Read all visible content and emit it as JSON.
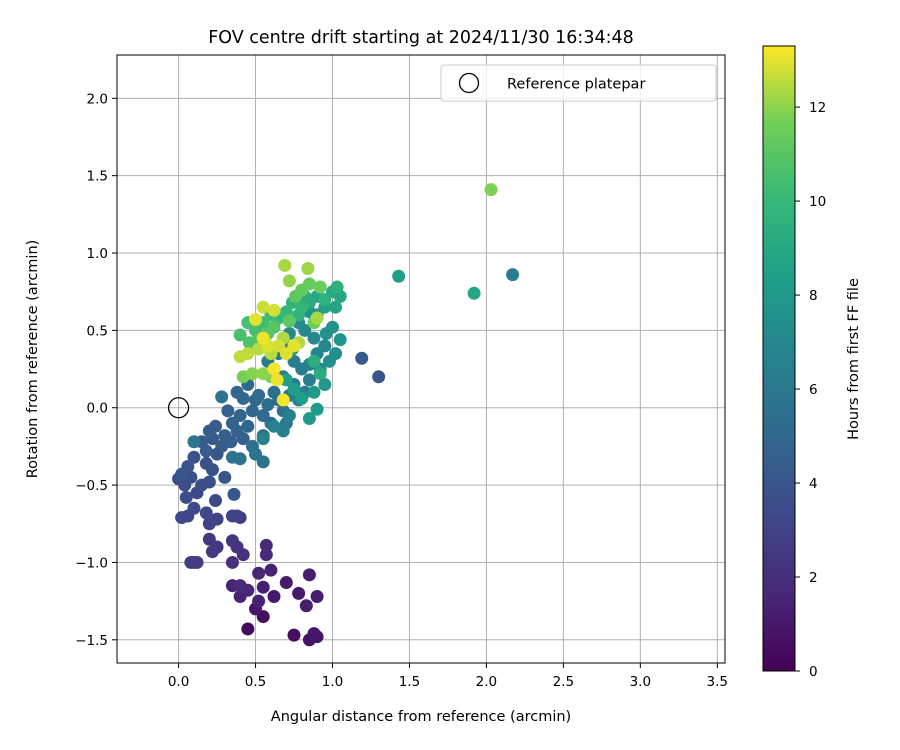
{
  "chart_data": {
    "type": "scatter",
    "title": "FOV centre drift starting at 2024/11/30 16:34:48",
    "xlabel": "Angular distance from reference (arcmin)",
    "ylabel": "Rotation from reference (arcmin)",
    "xlim": [
      -0.4,
      3.55
    ],
    "ylim": [
      -1.65,
      2.28
    ],
    "xticks": [
      0.0,
      0.5,
      1.0,
      1.5,
      2.0,
      2.5,
      3.0,
      3.5
    ],
    "xtick_labels": [
      "0.0",
      "0.5",
      "1.0",
      "1.5",
      "2.0",
      "2.5",
      "3.0",
      "3.5"
    ],
    "yticks": [
      -1.5,
      -1.0,
      -0.5,
      0.0,
      0.5,
      1.0,
      1.5,
      2.0
    ],
    "ytick_labels": [
      "−1.5",
      "−1.0",
      "−0.5",
      "0.0",
      "0.5",
      "1.0",
      "1.5",
      "2.0"
    ],
    "grid": true,
    "legend": {
      "position": "top-right",
      "entries": [
        {
          "label": "Reference platepar",
          "marker": "open-circle"
        }
      ]
    },
    "reference_point": {
      "x": 0.0,
      "y": 0.0
    },
    "colorbar": {
      "label": "Hours from first FF file",
      "colormap": "viridis",
      "range": [
        0,
        13.3
      ],
      "ticks": [
        0,
        2,
        4,
        6,
        8,
        10,
        12
      ],
      "tick_labels": [
        "0",
        "2",
        "4",
        "6",
        "8",
        "10",
        "12"
      ]
    },
    "points": [
      [
        0.45,
        -1.43,
        0.4
      ],
      [
        0.55,
        -1.35,
        0.5
      ],
      [
        0.75,
        -1.47,
        0.6
      ],
      [
        0.85,
        -1.5,
        0.7
      ],
      [
        0.9,
        -1.48,
        0.8
      ],
      [
        0.88,
        -1.46,
        0.9
      ],
      [
        0.5,
        -1.3,
        1.0
      ],
      [
        0.62,
        -1.22,
        1.0
      ],
      [
        0.7,
        -1.13,
        1.1
      ],
      [
        0.78,
        -1.2,
        1.1
      ],
      [
        0.83,
        -1.28,
        1.2
      ],
      [
        0.9,
        -1.22,
        1.2
      ],
      [
        0.85,
        -1.08,
        1.3
      ],
      [
        0.55,
        -1.16,
        1.3
      ],
      [
        0.6,
        -1.05,
        1.4
      ],
      [
        0.52,
        -1.25,
        1.4
      ],
      [
        0.4,
        -1.22,
        1.5
      ],
      [
        0.35,
        -1.15,
        1.5
      ],
      [
        0.45,
        -1.18,
        1.6
      ],
      [
        0.52,
        -1.07,
        1.6
      ],
      [
        0.57,
        -0.95,
        1.7
      ],
      [
        0.57,
        -0.89,
        1.8
      ],
      [
        0.4,
        -1.15,
        1.9
      ],
      [
        0.35,
        -1.0,
        2.0
      ],
      [
        0.42,
        -0.95,
        2.1
      ],
      [
        0.38,
        -0.9,
        2.2
      ],
      [
        0.35,
        -0.86,
        2.3
      ],
      [
        0.25,
        -0.9,
        2.4
      ],
      [
        0.2,
        -0.85,
        2.5
      ],
      [
        0.22,
        -0.93,
        2.6
      ],
      [
        0.1,
        -1.0,
        2.6
      ],
      [
        0.08,
        -1.0,
        2.7
      ],
      [
        0.12,
        -1.0,
        2.7
      ],
      [
        0.4,
        -0.71,
        2.8
      ],
      [
        0.38,
        -0.7,
        2.9
      ],
      [
        0.25,
        -0.72,
        3.0
      ],
      [
        0.2,
        -0.75,
        3.0
      ],
      [
        0.35,
        -0.7,
        3.1
      ],
      [
        0.02,
        -0.71,
        3.2
      ],
      [
        0.06,
        -0.7,
        3.2
      ],
      [
        0.1,
        -0.65,
        3.3
      ],
      [
        0.18,
        -0.68,
        3.3
      ],
      [
        0.24,
        -0.6,
        3.4
      ],
      [
        0.12,
        -0.55,
        3.4
      ],
      [
        0.05,
        -0.58,
        3.5
      ],
      [
        0.0,
        -0.46,
        3.5
      ],
      [
        0.04,
        -0.5,
        3.6
      ],
      [
        0.08,
        -0.45,
        3.6
      ],
      [
        0.15,
        -0.5,
        3.7
      ],
      [
        0.2,
        -0.48,
        3.7
      ],
      [
        0.22,
        -0.4,
        3.8
      ],
      [
        0.18,
        -0.36,
        3.8
      ],
      [
        0.1,
        -0.32,
        3.9
      ],
      [
        0.06,
        -0.38,
        3.9
      ],
      [
        0.02,
        -0.43,
        4.0
      ],
      [
        0.3,
        -0.45,
        4.0
      ],
      [
        0.36,
        -0.56,
        4.1
      ],
      [
        0.25,
        -0.3,
        4.1
      ],
      [
        0.28,
        -0.25,
        4.2
      ],
      [
        0.22,
        -0.2,
        4.2
      ],
      [
        0.18,
        -0.28,
        4.3
      ],
      [
        0.15,
        -0.22,
        4.3
      ],
      [
        0.2,
        -0.15,
        4.4
      ],
      [
        0.24,
        -0.12,
        4.4
      ],
      [
        0.3,
        -0.18,
        4.5
      ],
      [
        0.34,
        -0.22,
        4.5
      ],
      [
        0.38,
        -0.15,
        4.6
      ],
      [
        0.42,
        -0.2,
        4.6
      ],
      [
        0.35,
        -0.1,
        4.7
      ],
      [
        0.32,
        -0.02,
        4.7
      ],
      [
        0.4,
        -0.05,
        4.8
      ],
      [
        0.45,
        -0.12,
        4.8
      ],
      [
        0.48,
        -0.02,
        4.9
      ],
      [
        0.5,
        0.05,
        4.9
      ],
      [
        0.42,
        0.06,
        5.0
      ],
      [
        0.38,
        0.1,
        5.0
      ],
      [
        0.45,
        0.15,
        5.1
      ],
      [
        0.52,
        0.08,
        5.1
      ],
      [
        0.55,
        -0.05,
        5.2
      ],
      [
        0.6,
        -0.1,
        5.2
      ],
      [
        0.58,
        0.02,
        5.3
      ],
      [
        0.62,
        0.1,
        5.3
      ],
      [
        0.65,
        0.05,
        5.4
      ],
      [
        0.68,
        -0.02,
        5.4
      ],
      [
        0.55,
        -0.18,
        5.5
      ],
      [
        0.48,
        -0.25,
        5.5
      ],
      [
        0.5,
        -0.3,
        5.6
      ],
      [
        0.55,
        -0.35,
        5.6
      ],
      [
        0.35,
        -0.32,
        5.7
      ],
      [
        0.4,
        -0.33,
        5.7
      ],
      [
        0.1,
        -0.22,
        5.8
      ],
      [
        0.28,
        0.07,
        5.8
      ],
      [
        0.72,
        0.08,
        5.9
      ],
      [
        0.75,
        0.15,
        6.0
      ],
      [
        0.7,
        -0.1,
        6.0
      ],
      [
        0.68,
        0.2,
        6.1
      ],
      [
        0.62,
        0.25,
        6.1
      ],
      [
        0.58,
        0.3,
        6.2
      ],
      [
        0.65,
        0.35,
        6.2
      ],
      [
        0.75,
        0.3,
        6.3
      ],
      [
        0.8,
        0.25,
        6.3
      ],
      [
        0.85,
        0.18,
        6.4
      ],
      [
        0.82,
        0.1,
        6.4
      ],
      [
        0.78,
        0.05,
        6.5
      ],
      [
        0.72,
        -0.05,
        6.5
      ],
      [
        0.62,
        -0.12,
        6.6
      ],
      [
        0.68,
        -0.15,
        6.6
      ],
      [
        0.55,
        -0.2,
        6.7
      ],
      [
        1.19,
        0.32,
        4.2
      ],
      [
        1.3,
        0.2,
        4.0
      ],
      [
        2.17,
        0.86,
        6.3
      ],
      [
        0.85,
        0.28,
        6.7
      ],
      [
        0.9,
        0.35,
        6.8
      ],
      [
        0.95,
        0.4,
        6.9
      ],
      [
        0.88,
        0.45,
        7.0
      ],
      [
        0.82,
        0.5,
        7.0
      ],
      [
        0.78,
        0.55,
        7.1
      ],
      [
        0.72,
        0.48,
        7.2
      ],
      [
        0.68,
        0.42,
        7.2
      ],
      [
        0.74,
        0.38,
        7.3
      ],
      [
        0.92,
        0.25,
        7.3
      ],
      [
        0.98,
        0.3,
        7.4
      ],
      [
        1.02,
        0.35,
        7.4
      ],
      [
        0.96,
        0.48,
        7.5
      ],
      [
        1.0,
        0.52,
        7.6
      ],
      [
        0.9,
        0.6,
        7.7
      ],
      [
        0.85,
        0.62,
        7.7
      ],
      [
        1.05,
        0.44,
        7.8
      ],
      [
        0.95,
        0.15,
        7.9
      ],
      [
        0.88,
        0.1,
        8.0
      ],
      [
        0.85,
        -0.07,
        8.1
      ],
      [
        0.9,
        -0.01,
        8.2
      ],
      [
        0.8,
        0.06,
        8.3
      ],
      [
        0.75,
        0.12,
        8.4
      ],
      [
        0.7,
        0.18,
        8.5
      ],
      [
        1.43,
        0.85,
        8.4
      ],
      [
        1.92,
        0.74,
        8.8
      ],
      [
        0.95,
        0.65,
        8.6
      ],
      [
        1.02,
        0.65,
        8.7
      ],
      [
        1.05,
        0.72,
        8.8
      ],
      [
        1.0,
        0.75,
        8.9
      ],
      [
        0.9,
        0.72,
        9.0
      ],
      [
        0.85,
        0.68,
        9.1
      ],
      [
        0.82,
        0.72,
        9.2
      ],
      [
        0.92,
        0.22,
        9.2
      ],
      [
        0.88,
        0.3,
        9.4
      ],
      [
        1.03,
        0.78,
        9.5
      ],
      [
        0.95,
        0.7,
        9.6
      ],
      [
        0.78,
        0.6,
        9.7
      ],
      [
        0.8,
        0.65,
        9.8
      ],
      [
        0.74,
        0.68,
        9.9
      ],
      [
        0.7,
        0.62,
        10.0
      ],
      [
        0.65,
        0.58,
        10.1
      ],
      [
        0.6,
        0.6,
        10.2
      ],
      [
        0.55,
        0.55,
        10.3
      ],
      [
        0.5,
        0.5,
        10.4
      ],
      [
        0.45,
        0.55,
        10.5
      ],
      [
        0.4,
        0.47,
        10.6
      ],
      [
        0.46,
        0.42,
        10.7
      ],
      [
        0.52,
        0.45,
        10.8
      ],
      [
        0.58,
        0.48,
        10.9
      ],
      [
        0.62,
        0.52,
        11.0
      ],
      [
        0.72,
        0.56,
        11.1
      ],
      [
        0.76,
        0.72,
        11.2
      ],
      [
        0.8,
        0.76,
        11.3
      ],
      [
        0.85,
        0.8,
        11.4
      ],
      [
        0.92,
        0.78,
        11.5
      ],
      [
        0.88,
        0.55,
        11.6
      ],
      [
        0.42,
        0.2,
        11.7
      ],
      [
        0.6,
        0.2,
        11.8
      ],
      [
        0.48,
        0.22,
        11.9
      ],
      [
        0.55,
        0.22,
        12.0
      ],
      [
        0.72,
        0.82,
        12.1
      ],
      [
        0.84,
        0.9,
        12.2
      ],
      [
        0.69,
        0.92,
        12.3
      ],
      [
        0.9,
        0.58,
        12.3
      ],
      [
        0.78,
        0.42,
        12.4
      ],
      [
        0.68,
        0.45,
        12.4
      ],
      [
        0.6,
        0.35,
        12.5
      ],
      [
        0.52,
        0.38,
        12.5
      ],
      [
        0.45,
        0.35,
        12.6
      ],
      [
        0.4,
        0.33,
        12.6
      ],
      [
        0.55,
        0.65,
        12.7
      ],
      [
        0.62,
        0.63,
        12.8
      ],
      [
        0.65,
        0.4,
        12.8
      ],
      [
        0.58,
        0.4,
        12.9
      ],
      [
        0.7,
        0.35,
        12.9
      ],
      [
        0.75,
        0.4,
        13.0
      ],
      [
        0.5,
        0.57,
        13.0
      ],
      [
        0.55,
        0.45,
        13.1
      ],
      [
        0.68,
        0.05,
        13.2
      ],
      [
        2.03,
        1.41,
        11.8
      ],
      [
        0.64,
        0.18,
        13.1
      ],
      [
        0.62,
        0.25,
        13.2
      ]
    ]
  }
}
